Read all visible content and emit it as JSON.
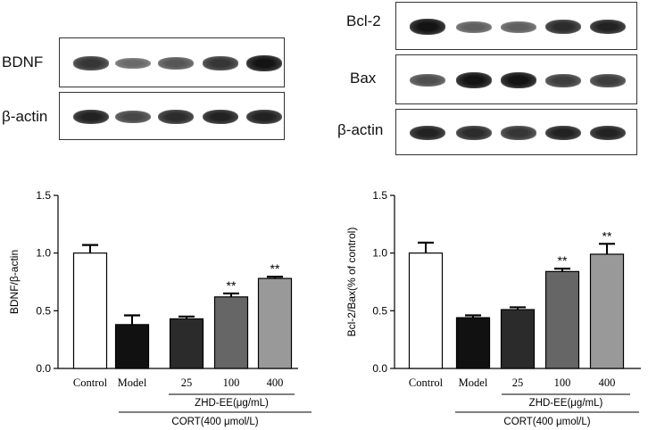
{
  "blots": {
    "left": {
      "rows": [
        {
          "label": "BDNF",
          "intensity": [
            0.75,
            0.45,
            0.55,
            0.75,
            0.95
          ]
        },
        {
          "label": "β-actin",
          "intensity": [
            0.85,
            0.65,
            0.8,
            0.85,
            0.85
          ]
        }
      ]
    },
    "right": {
      "rows": [
        {
          "label": "Bcl-2",
          "intensity": [
            0.95,
            0.5,
            0.5,
            0.8,
            0.85
          ]
        },
        {
          "label": "Bax",
          "intensity": [
            0.6,
            0.95,
            0.95,
            0.7,
            0.7
          ]
        },
        {
          "label": "β-actin",
          "intensity": [
            0.85,
            0.8,
            0.75,
            0.85,
            0.85
          ]
        }
      ]
    }
  },
  "chart_data": [
    {
      "type": "bar",
      "ylabel": "BDNF/β-actin",
      "ylim": [
        0,
        1.5
      ],
      "yticks": [
        "0.0",
        "0.5",
        "1.0",
        "1.5"
      ],
      "categories": [
        "Control",
        "Model",
        "25",
        "100",
        "400"
      ],
      "values": [
        1.0,
        0.38,
        0.43,
        0.62,
        0.78
      ],
      "errors": [
        0.07,
        0.08,
        0.02,
        0.03,
        0.015
      ],
      "significance": [
        "",
        "",
        "",
        "**",
        "**"
      ],
      "colors": [
        "#ffffff",
        "#111111",
        "#2b2b2b",
        "#666666",
        "#999999"
      ],
      "group_label": "ZHD-EE(μg/mL)",
      "treatment_label": "CORT(400 μmol/L)"
    },
    {
      "type": "bar",
      "ylabel": "Bcl-2/Bax(% of control)",
      "ylim": [
        0,
        1.5
      ],
      "yticks": [
        "0.0",
        "0.5",
        "1.0",
        "1.5"
      ],
      "categories": [
        "Control",
        "Model",
        "25",
        "100",
        "400"
      ],
      "values": [
        1.0,
        0.44,
        0.51,
        0.84,
        0.99
      ],
      "errors": [
        0.09,
        0.02,
        0.02,
        0.025,
        0.09
      ],
      "significance": [
        "",
        "",
        "",
        "**",
        "**"
      ],
      "colors": [
        "#ffffff",
        "#111111",
        "#2b2b2b",
        "#666666",
        "#999999"
      ],
      "group_label": "ZHD-EE(μg/mL)",
      "treatment_label": "CORT(400 μmol/L)"
    }
  ]
}
